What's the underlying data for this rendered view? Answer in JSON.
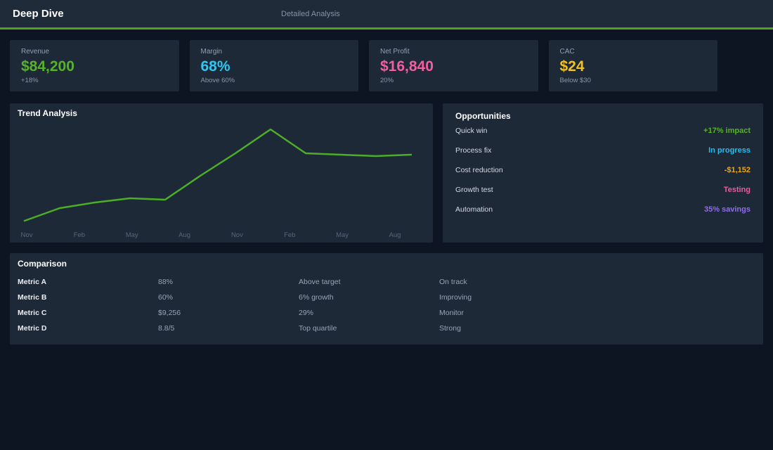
{
  "header": {
    "title": "Deep Dive",
    "subtitle": "Detailed Analysis"
  },
  "kpis": [
    {
      "label": "Revenue",
      "value": "$84,200",
      "sub": "+18%",
      "color": "#56b22a"
    },
    {
      "label": "Margin",
      "value": "68%",
      "sub": "Above 60%",
      "color": "#30c6f0"
    },
    {
      "label": "Net Profit",
      "value": "$16,840",
      "sub": "20%",
      "color": "#f0609e"
    },
    {
      "label": "CAC",
      "value": "$24",
      "sub": "Below $30",
      "color": "#f2c21f"
    }
  ],
  "chart_data": {
    "type": "line",
    "title": "Trend Analysis",
    "x_tick_labels": [
      "Nov",
      "Feb",
      "May",
      "Aug",
      "Nov",
      "Feb",
      "May",
      "Aug"
    ],
    "values": [
      20,
      29,
      33,
      36,
      35,
      52,
      68,
      85,
      68,
      67,
      66,
      67
    ],
    "ylim": [
      10,
      95
    ],
    "line_color": "#4cae27",
    "tick_color": "#5a6478",
    "grid": false,
    "legend": false,
    "y_axis_hidden": true
  },
  "opportunities": {
    "title": "Opportunities",
    "items": [
      {
        "label": "Quick win",
        "value": "+17% impact",
        "color": "#56b22a"
      },
      {
        "label": "Process fix",
        "value": "In progress",
        "color": "#28bdee"
      },
      {
        "label": "Cost reduction",
        "value": "-$1,152",
        "color": "#eca616"
      },
      {
        "label": "Growth test",
        "value": "Testing",
        "color": "#ea5ba0"
      },
      {
        "label": "Automation",
        "value": "35% savings",
        "color": "#8e6de8"
      }
    ]
  },
  "comparison": {
    "title": "Comparison",
    "rows": [
      [
        "Metric A",
        "88%",
        "Above target",
        "On track"
      ],
      [
        "Metric B",
        "60%",
        "6% growth",
        "Improving"
      ],
      [
        "Metric C",
        "$9,256",
        "29%",
        "Monitor"
      ],
      [
        "Metric D",
        "8.8/5",
        "Top quartile",
        "Strong"
      ]
    ]
  },
  "colors": {
    "accent_line": "#55a11e",
    "panel_bg": "#1e2938",
    "page_bg": "#0e1522"
  }
}
